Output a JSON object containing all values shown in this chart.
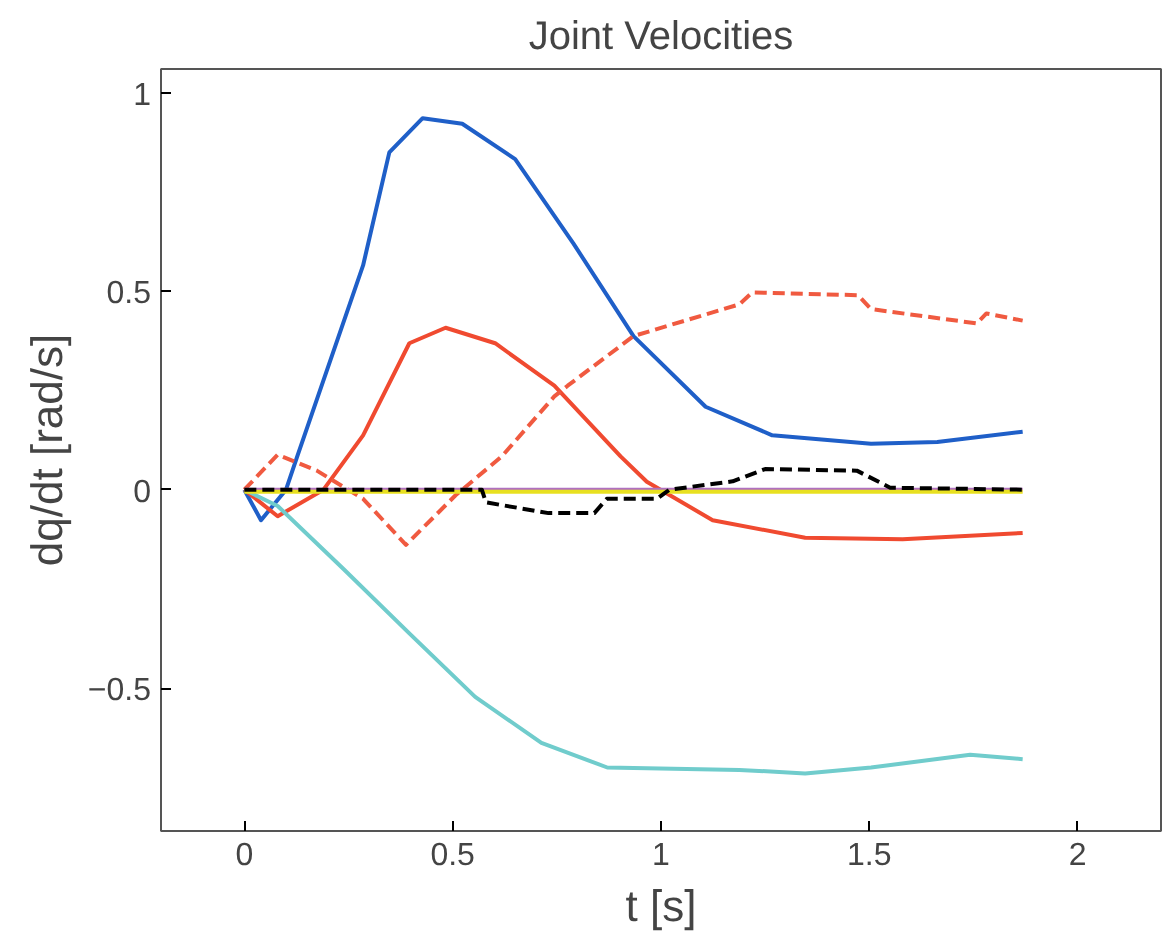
{
  "chart_data": {
    "type": "line",
    "title": "Joint Velocities",
    "xlabel": "t [s]",
    "ylabel": "dq/dt [rad/s]",
    "xlim": [
      -0.2,
      2.2
    ],
    "ylim": [
      -0.86,
      1.06
    ],
    "xticks": [
      0,
      0.5,
      1,
      1.5,
      2
    ],
    "yticks": [
      -0.5,
      0,
      0.5,
      1
    ],
    "grid": false,
    "marker": "none",
    "series": [
      {
        "color": "#1f5fc8",
        "line_style": "solid",
        "x": [
          0,
          0.04,
          0.1,
          0.127,
          0.285,
          0.348,
          0.428,
          0.523,
          0.65,
          0.79,
          0.934,
          1.107,
          1.267,
          1.504,
          1.663,
          1.868
        ],
        "values": [
          0,
          -0.077,
          0,
          0.084,
          0.565,
          0.85,
          0.936,
          0.922,
          0.833,
          0.62,
          0.387,
          0.209,
          0.137,
          0.116,
          0.12,
          0.146
        ]
      },
      {
        "color": "#f04a30",
        "line_style": "solid",
        "x": [
          0,
          0.08,
          0.19,
          0.285,
          0.396,
          0.483,
          0.602,
          0.744,
          0.903,
          0.966,
          1.124,
          1.346,
          1.58,
          1.868
        ],
        "values": [
          0,
          -0.067,
          0,
          0.137,
          0.369,
          0.408,
          0.369,
          0.262,
          0.084,
          0.02,
          -0.077,
          -0.121,
          -0.125,
          -0.109
        ]
      },
      {
        "color": "#f05a40",
        "line_style": "dashed",
        "x": [
          0,
          0.08,
          0.174,
          0.285,
          0.388,
          0.507,
          0.618,
          0.744,
          0.776,
          0.934,
          1.188,
          1.219,
          1.473,
          1.504,
          1.758,
          1.781,
          1.868
        ],
        "values": [
          0,
          0.088,
          0.048,
          -0.023,
          -0.139,
          -0.014,
          0.084,
          0.235,
          0.262,
          0.387,
          0.467,
          0.497,
          0.49,
          0.455,
          0.419,
          0.444,
          0.426
        ]
      },
      {
        "color": "#70cccc",
        "line_style": "solid",
        "x": [
          0,
          0.08,
          0.238,
          0.396,
          0.554,
          0.713,
          0.871,
          1.188,
          1.346,
          1.504,
          1.742,
          1.868
        ],
        "values": [
          0,
          -0.041,
          -0.2,
          -0.362,
          -0.522,
          -0.638,
          -0.7,
          -0.706,
          -0.715,
          -0.7,
          -0.668,
          -0.679
        ]
      },
      {
        "color": "#b070c0",
        "line_style": "solid",
        "x": [
          0,
          1.868
        ],
        "values": [
          0,
          0
        ]
      },
      {
        "color": "#e8e020",
        "line_style": "solid",
        "x": [
          0,
          1.868
        ],
        "values": [
          -0.005,
          -0.005
        ]
      },
      {
        "color": "#000000",
        "line_style": "dashed",
        "x": [
          0,
          0.57,
          0.58,
          0.73,
          0.84,
          0.87,
          0.99,
          1.02,
          1.172,
          1.25,
          1.47,
          1.55,
          1.868
        ],
        "values": [
          0,
          0,
          -0.032,
          -0.059,
          -0.059,
          -0.023,
          -0.023,
          0,
          0.021,
          0.052,
          0.048,
          0.005,
          0
        ]
      }
    ]
  }
}
